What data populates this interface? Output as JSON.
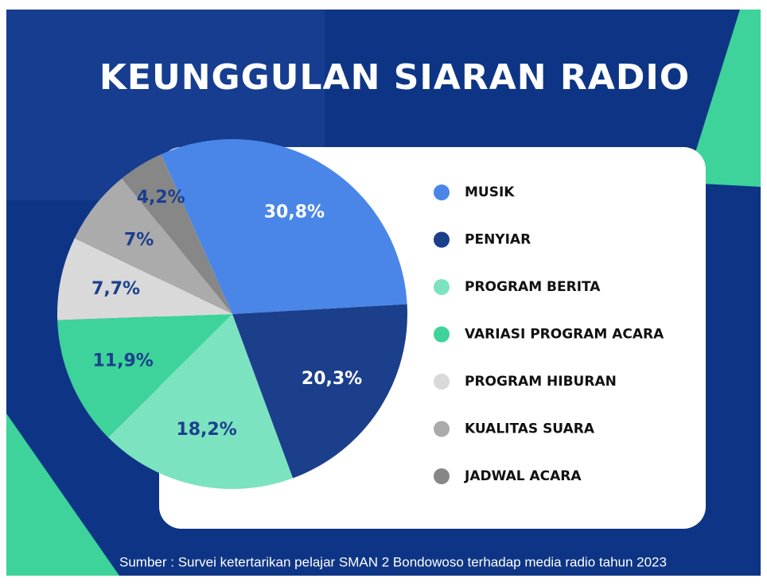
{
  "chart_data": {
    "type": "pie",
    "title": "KEUNGGULAN SIARAN RADIO",
    "categories": [
      "MUSIK",
      "PENYIAR",
      "PROGRAM BERITA",
      "VARIASI PROGRAM ACARA",
      "PROGRAM HIBURAN",
      "KUALITAS SUARA",
      "JADWAL ACARA"
    ],
    "values": [
      30.8,
      20.3,
      18.2,
      11.9,
      7.7,
      7,
      4.2
    ],
    "value_labels": [
      "30,8%",
      "20,3%",
      "18,2%",
      "11,9%",
      "7,7%",
      "7%",
      "4,2%"
    ],
    "colors": [
      "#4a86e8",
      "#1c3f8c",
      "#7be3c0",
      "#3dd39a",
      "#d9d9d9",
      "#ababab",
      "#878787"
    ],
    "value_label_colors": [
      "#ffffff",
      "#ffffff",
      "#1c3f8c",
      "#1c3f8c",
      "#1c3f8c",
      "#1c3f8c",
      "#1c3f8c"
    ],
    "source": "Sumber : Survei ketertarikan pelajar SMAN 2 Bondowoso terhadap media radio tahun 2023"
  }
}
